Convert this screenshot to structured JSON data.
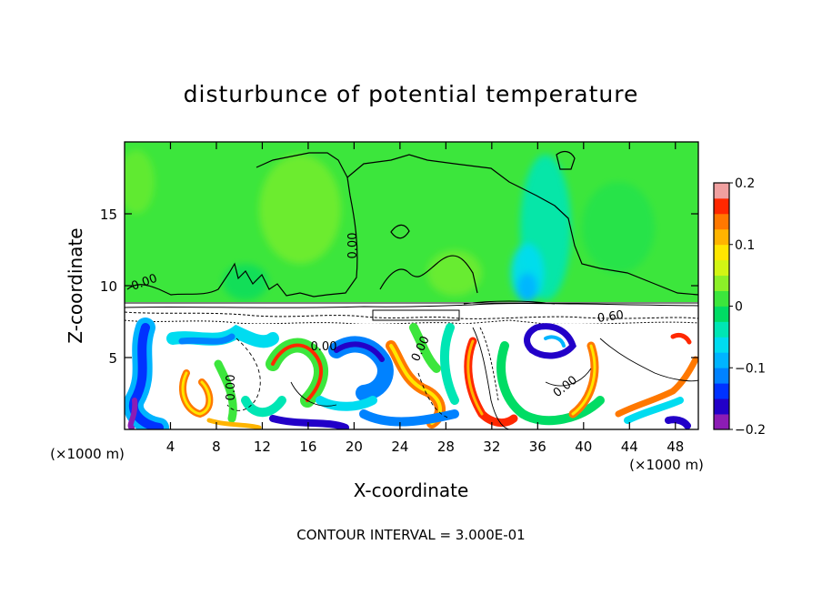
{
  "chart_data": {
    "type": "heatmap",
    "title": "disturbunce of potential temperature",
    "xlabel": "X-coordinate",
    "ylabel": "Z-coordinate",
    "x_unit": "(×1000 m)",
    "x_unit_right": "(×1000 m)",
    "xlim": [
      0,
      50
    ],
    "ylim": [
      0,
      20
    ],
    "x_ticks": [
      4,
      8,
      12,
      16,
      20,
      24,
      28,
      32,
      36,
      40,
      44,
      48
    ],
    "y_ticks": [
      5,
      10,
      15
    ],
    "colorbar": {
      "range": [
        -0.2,
        0.2
      ],
      "tick_values": [
        0.2,
        0.1,
        0,
        -0.1,
        -0.2
      ],
      "tick_labels": [
        "0.2",
        "0.1",
        "0",
        "−0.1",
        "−0.2"
      ],
      "levels": [
        {
          "from": -0.2,
          "to": -0.175,
          "color": "#8c1cb4"
        },
        {
          "from": -0.175,
          "to": -0.15,
          "color": "#2200c8"
        },
        {
          "from": -0.15,
          "to": -0.125,
          "color": "#0032ff"
        },
        {
          "from": -0.125,
          "to": -0.1,
          "color": "#0082ff"
        },
        {
          "from": -0.1,
          "to": -0.075,
          "color": "#00b4ff"
        },
        {
          "from": -0.075,
          "to": -0.05,
          "color": "#00dcf0"
        },
        {
          "from": -0.05,
          "to": -0.025,
          "color": "#00e6b4"
        },
        {
          "from": -0.025,
          "to": 0,
          "color": "#00dc64"
        },
        {
          "from": 0,
          "to": 0.025,
          "color": "#3ce63c"
        },
        {
          "from": 0.025,
          "to": 0.05,
          "color": "#8cf028"
        },
        {
          "from": 0.05,
          "to": 0.075,
          "color": "#d2f514"
        },
        {
          "from": 0.075,
          "to": 0.1,
          "color": "#ffe600"
        },
        {
          "from": 0.1,
          "to": 0.125,
          "color": "#ffb400"
        },
        {
          "from": 0.125,
          "to": 0.15,
          "color": "#ff7800"
        },
        {
          "from": 0.15,
          "to": 0.175,
          "color": "#ff2800"
        },
        {
          "from": 0.175,
          "to": 0.2,
          "color": "#f0a0a0"
        }
      ]
    },
    "contour_labels": [
      "0.00",
      "0.00",
      "0.00",
      "0.00",
      "0.00",
      "0.60",
      "0.00"
    ],
    "footer": "CONTOUR INTERVAL = 3.000E-01"
  }
}
